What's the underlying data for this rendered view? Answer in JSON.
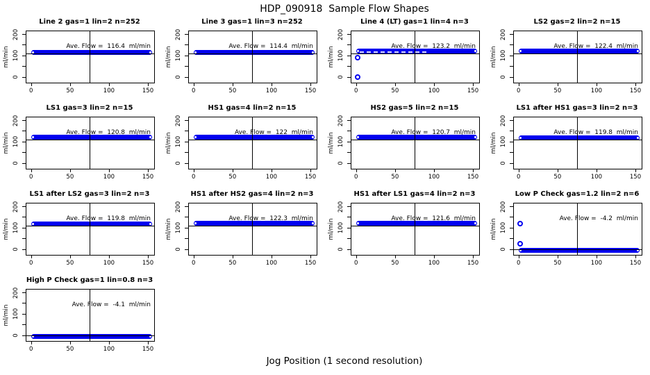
{
  "chart_data": {
    "type": "scatter",
    "title": "HDP_090918  Sample Flow Shapes",
    "xlabel": "Jog Position (1 second resolution)",
    "ylabel": "ml/min",
    "grid": {
      "rows": 4,
      "cols": 4,
      "num_panels": 13
    },
    "axes": {
      "xlim": [
        -6,
        158
      ],
      "ylim": [
        -26,
        215
      ],
      "x_ticks": [
        0,
        50,
        100,
        150
      ],
      "y_ticks_labeled": [
        0,
        100,
        200
      ],
      "y_ticks_minor": [
        50,
        150
      ],
      "vline_x": 75
    },
    "style": {
      "point_color": "#0101f0",
      "ref_line_color": "#000000",
      "background": "#ffffff"
    },
    "panels": [
      {
        "title": "Line 2 gas=1 lin=2 n=252",
        "avg_flow": 116.4,
        "annotation": "Ave. Flow =  116.4  ml/min",
        "flow_band": {
          "x_from": 0,
          "x_to": 155,
          "y": 116.4
        },
        "ref_line_y": 110,
        "outliers": [],
        "speckled": false
      },
      {
        "title": "Line 3 gas=1 lin=3 n=252",
        "avg_flow": 114.4,
        "annotation": "Ave. Flow =  114.4  ml/min",
        "flow_band": {
          "x_from": 0,
          "x_to": 155,
          "y": 114.4
        },
        "ref_line_y": 110,
        "outliers": [],
        "speckled": false
      },
      {
        "title": "Line 4 (LT) gas=1 lin=4 n=3",
        "avg_flow": 123.2,
        "annotation": "Ave. Flow =  123.2  ml/min",
        "flow_band": {
          "x_from": 0,
          "x_to": 155,
          "y": 121
        },
        "ref_line_y": 110,
        "outliers": [
          {
            "x": 2,
            "y": 90
          },
          {
            "x": 2,
            "y": 0
          }
        ],
        "speckled": true
      },
      {
        "title": "LS2 gas=2 lin=2 n=15",
        "avg_flow": 122.4,
        "annotation": "Ave. Flow =  122.4  ml/min",
        "flow_band": {
          "x_from": 0,
          "x_to": 155,
          "y": 122.4
        },
        "ref_line_y": 110,
        "outliers": [],
        "speckled": false
      },
      {
        "title": "LS1 gas=3 lin=2 n=15",
        "avg_flow": 120.8,
        "annotation": "Ave. Flow =  120.8  ml/min",
        "flow_band": {
          "x_from": 0,
          "x_to": 155,
          "y": 120.8
        },
        "ref_line_y": 110,
        "outliers": [],
        "speckled": false
      },
      {
        "title": "HS1 gas=4 lin=2 n=15",
        "avg_flow": 122,
        "annotation": "Ave. Flow =  122  ml/min",
        "flow_band": {
          "x_from": 0,
          "x_to": 155,
          "y": 122
        },
        "ref_line_y": 110,
        "outliers": [],
        "speckled": false
      },
      {
        "title": "HS2 gas=5 lin=2 n=15",
        "avg_flow": 120.7,
        "annotation": "Ave. Flow =  120.7  ml/min",
        "flow_band": {
          "x_from": 0,
          "x_to": 155,
          "y": 120.7
        },
        "ref_line_y": 110,
        "outliers": [],
        "speckled": false
      },
      {
        "title": "LS1 after HS1 gas=3 lin=2 n=3",
        "avg_flow": 119.8,
        "annotation": "Ave. Flow =  119.8  ml/min",
        "flow_band": {
          "x_from": 0,
          "x_to": 155,
          "y": 119.8
        },
        "ref_line_y": 110,
        "outliers": [],
        "speckled": false
      },
      {
        "title": "LS1 after LS2 gas=3 lin=2 n=3",
        "avg_flow": 119.8,
        "annotation": "Ave. Flow =  119.8  ml/min",
        "flow_band": {
          "x_from": 0,
          "x_to": 155,
          "y": 119.8
        },
        "ref_line_y": 110,
        "outliers": [],
        "speckled": false
      },
      {
        "title": "HS1 after HS2 gas=4 lin=2 n=3",
        "avg_flow": 122.3,
        "annotation": "Ave. Flow =  122.3  ml/min",
        "flow_band": {
          "x_from": 0,
          "x_to": 155,
          "y": 122.3
        },
        "ref_line_y": 110,
        "outliers": [],
        "speckled": false
      },
      {
        "title": "HS1 after LS1 gas=4 lin=2 n=3",
        "avg_flow": 121.6,
        "annotation": "Ave. Flow =  121.6  ml/min",
        "flow_band": {
          "x_from": 0,
          "x_to": 155,
          "y": 121.6
        },
        "ref_line_y": 110,
        "outliers": [],
        "speckled": false
      },
      {
        "title": "Low P Check gas=1.2 lin=2 n=6",
        "avg_flow": -4.2,
        "annotation": "Ave. Flow =  -4.2  ml/min",
        "flow_band": {
          "x_from": 0,
          "x_to": 155,
          "y": -4.2
        },
        "ref_line_y": 0,
        "outliers": [
          {
            "x": 2,
            "y": 120
          },
          {
            "x": 2,
            "y": 25
          }
        ],
        "speckled": false
      },
      {
        "title": "High P Check gas=1 lin=0.8 n=3",
        "avg_flow": -4.1,
        "annotation": "Ave. Flow =  -4.1  ml/min",
        "flow_band": {
          "x_from": 0,
          "x_to": 155,
          "y": -4.1
        },
        "ref_line_y": 0,
        "outliers": [],
        "speckled": false
      }
    ]
  }
}
